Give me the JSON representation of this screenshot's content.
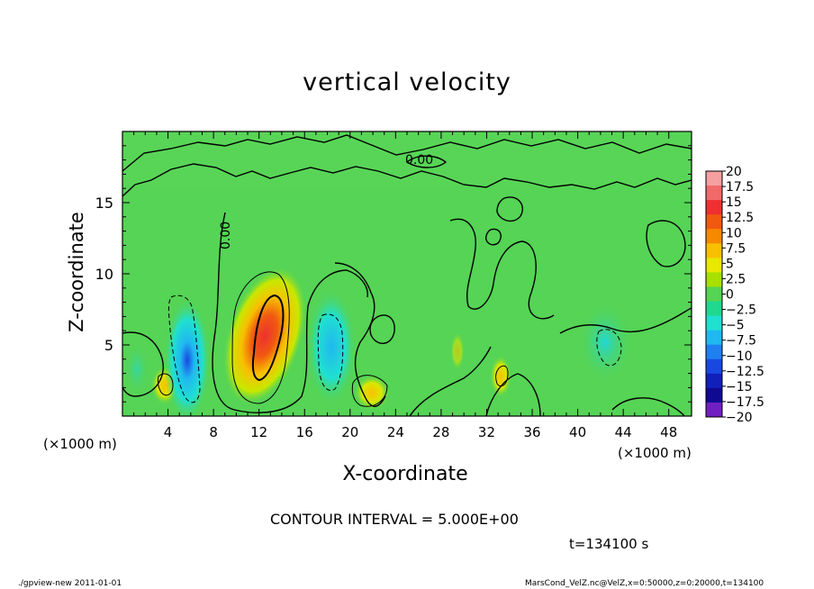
{
  "chart_data": {
    "type": "heatmap",
    "title": "vertical velocity",
    "xlabel": "X-coordinate",
    "ylabel": "Z-coordinate",
    "x_unit": "(×1000 m)",
    "z_unit": "(×1000 m)",
    "xlim": [
      0,
      50
    ],
    "ylim": [
      0,
      20
    ],
    "x_ticks": [
      "4",
      "8",
      "12",
      "16",
      "20",
      "24",
      "28",
      "32",
      "36",
      "40",
      "44",
      "48"
    ],
    "y_ticks": [
      "5",
      "10",
      "15"
    ],
    "colorbar": {
      "labels": [
        "20",
        "17.5",
        "15",
        "12.5",
        "10",
        "7.5",
        "5",
        "2.5",
        "0",
        "−2.5",
        "−5",
        "−7.5",
        "−10",
        "−12.5",
        "−15",
        "−17.5",
        "−20"
      ],
      "colors": [
        "#f4a0a0",
        "#f06a6a",
        "#ee3030",
        "#f05a10",
        "#f58a00",
        "#f8c000",
        "#e8e800",
        "#a8e000",
        "#55d455",
        "#20d890",
        "#20e0d0",
        "#20b8f0",
        "#2080f0",
        "#1848e0",
        "#1020b8",
        "#100a90",
        "#7020c0"
      ]
    },
    "contour_interval": "CONTOUR INTERVAL = 5.000E+00",
    "contour_labels": [
      "0.00",
      "0.00"
    ],
    "features": [
      {
        "kind": "updraft",
        "x": 12.5,
        "z": 5.5,
        "peak": 12
      },
      {
        "kind": "updraft",
        "x": 2.2,
        "z": 2.0,
        "peak": 5
      },
      {
        "kind": "updraft",
        "x": 22.3,
        "z": 1.5,
        "peak": 6
      },
      {
        "kind": "updraft",
        "x": 33.2,
        "z": 2.5,
        "peak": 5
      },
      {
        "kind": "downdraft",
        "x": 6.0,
        "z": 3.5,
        "peak": -9
      },
      {
        "kind": "downdraft",
        "x": 18.5,
        "z": 5.0,
        "peak": -6
      },
      {
        "kind": "downdraft",
        "x": 42.5,
        "z": 5.0,
        "peak": -4
      }
    ]
  },
  "time_label": "t=134100 s",
  "footer_left": "./gpview-new   2011-01-01",
  "footer_right": "MarsCond_VelZ.nc@VelZ,x=0:50000,z=0:20000,t=134100"
}
